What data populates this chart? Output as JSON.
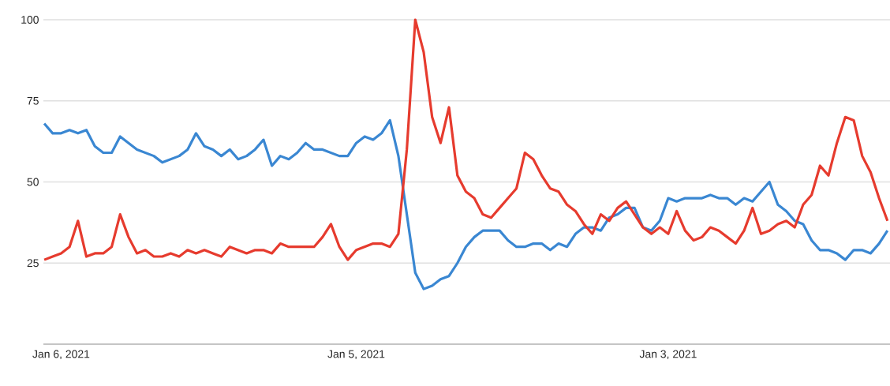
{
  "chart_data": {
    "type": "line",
    "categories": [
      null,
      null,
      "Jan 6, 2021",
      null,
      null,
      null,
      null,
      null,
      null,
      null,
      null,
      null,
      null,
      null,
      null,
      null,
      null,
      null,
      null,
      null,
      null,
      null,
      null,
      null,
      null,
      null,
      null,
      null,
      null,
      null,
      null,
      null,
      null,
      null,
      null,
      null,
      null,
      "Jan 5, 2021",
      null,
      null,
      null,
      null,
      null,
      null,
      null,
      null,
      null,
      null,
      null,
      null,
      null,
      null,
      null,
      null,
      null,
      null,
      null,
      null,
      null,
      null,
      null,
      null,
      null,
      null,
      null,
      null,
      null,
      null,
      null,
      null,
      null,
      null,
      null,
      null,
      "Jan 3, 2021",
      null,
      null,
      null,
      null,
      null,
      null,
      null,
      null,
      null,
      null,
      null,
      null,
      null,
      null,
      null,
      null,
      null,
      null,
      null,
      null,
      null,
      null,
      null,
      null,
      null,
      null
    ],
    "series": [
      {
        "color": "#3a87d2",
        "values": [
          68,
          65,
          65,
          66,
          65,
          66,
          61,
          59,
          59,
          64,
          62,
          60,
          59,
          58,
          56,
          57,
          58,
          60,
          65,
          61,
          60,
          58,
          60,
          57,
          58,
          60,
          63,
          55,
          58,
          57,
          59,
          62,
          60,
          60,
          59,
          58,
          58,
          62,
          64,
          63,
          65,
          69,
          58,
          40,
          22,
          17,
          18,
          20,
          21,
          25,
          30,
          33,
          35,
          35,
          35,
          32,
          30,
          30,
          31,
          31,
          29,
          31,
          30,
          34,
          36,
          36,
          35,
          39,
          40,
          42,
          42,
          36,
          35,
          38,
          45,
          44,
          45,
          45,
          45,
          46,
          45,
          45,
          43,
          45,
          44,
          47,
          50,
          43,
          41,
          38,
          37,
          32,
          29,
          29,
          28,
          26,
          29,
          29,
          28,
          31,
          35
        ]
      },
      {
        "color": "#e63b2e",
        "values": [
          26,
          27,
          28,
          30,
          38,
          27,
          28,
          28,
          30,
          40,
          33,
          28,
          29,
          27,
          27,
          28,
          27,
          29,
          28,
          29,
          28,
          27,
          30,
          29,
          28,
          29,
          29,
          28,
          31,
          30,
          30,
          30,
          30,
          33,
          37,
          30,
          26,
          29,
          30,
          31,
          31,
          30,
          34,
          60,
          100,
          90,
          70,
          62,
          73,
          52,
          47,
          45,
          40,
          39,
          42,
          45,
          48,
          59,
          57,
          52,
          48,
          47,
          43,
          41,
          37,
          34,
          40,
          38,
          42,
          44,
          40,
          36,
          34,
          36,
          34,
          41,
          35,
          32,
          33,
          36,
          35,
          33,
          31,
          35,
          42,
          34,
          35,
          37,
          38,
          36,
          43,
          46,
          55,
          52,
          62,
          70,
          69,
          58,
          53,
          45,
          38
        ]
      }
    ],
    "ylim": [
      0,
      100
    ],
    "yticks": [
      25,
      50,
      75,
      100
    ],
    "grid": "y"
  }
}
